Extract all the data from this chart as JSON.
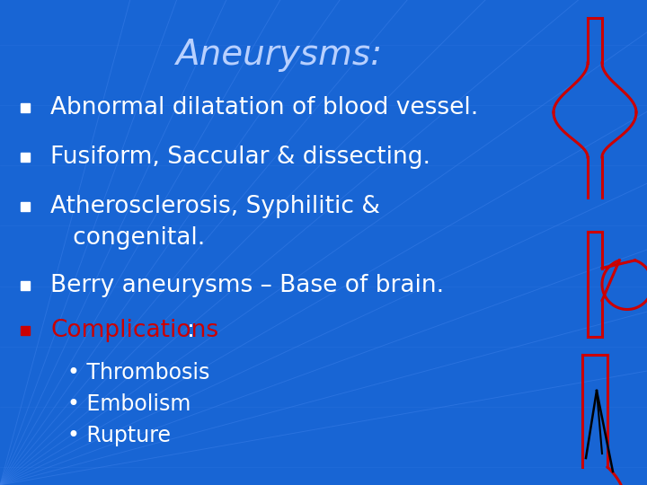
{
  "title": "Aneurysms:",
  "background_color": "#1865D4",
  "title_color": "#B8D0FF",
  "bullet_color": "#FFFFFF",
  "bullet_marker_color": "#FFFFFF",
  "complications_color": "#CC0000",
  "sub_bullet_color": "#FFFFFF",
  "title_fontsize": 28,
  "bullet_fontsize": 19,
  "sub_bullet_fontsize": 17,
  "bullets": [
    "Abnormal dilatation of blood vessel.",
    "Fusiform, Saccular & dissecting.",
    "Atherosclerosis, Syphilitic &\n   congenital.",
    "Berry aneurysms – Base of brain.",
    "Complications:"
  ],
  "sub_bullets": [
    "• Thrombosis",
    "• Embolism",
    "• Rupture"
  ],
  "grid_color": "#3A7EE8",
  "aneurysm_color": "#CC0000",
  "vessel_color": "#CC0000",
  "black_color": "#000000"
}
